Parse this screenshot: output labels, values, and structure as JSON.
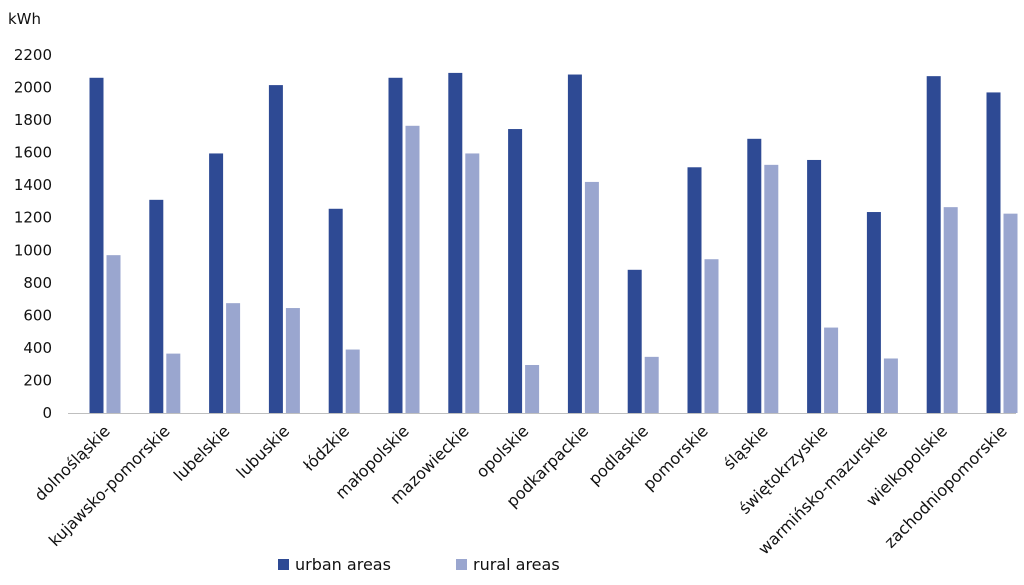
{
  "chart_data": {
    "type": "bar",
    "unit_label": "kWh",
    "categories": [
      "dolnośląskie",
      "kujawsko-pomorskie",
      "lubelskie",
      "lubuskie",
      "łódzkie",
      "małopolskie",
      "mazowieckie",
      "opolskie",
      "podkarpackie",
      "podlaskie",
      "pomorskie",
      "śląskie",
      "świętokrzyskie",
      "warmińsko-mazurskie",
      "wielkopolskie",
      "zachodniopomorskie"
    ],
    "series": [
      {
        "name": "urban areas",
        "color": "#2e4a94",
        "values": [
          2060,
          1310,
          1595,
          2015,
          1255,
          2060,
          2090,
          1745,
          2080,
          880,
          1510,
          1685,
          1555,
          1235,
          2070,
          1970
        ]
      },
      {
        "name": "rural areas",
        "color": "#9aa6cf",
        "values": [
          970,
          365,
          675,
          645,
          390,
          1765,
          1595,
          295,
          1420,
          345,
          945,
          1525,
          525,
          335,
          1265,
          1225
        ]
      }
    ],
    "ylim": [
      0,
      2200
    ],
    "yticks": [
      0,
      200,
      400,
      600,
      800,
      1000,
      1200,
      1400,
      1600,
      1800,
      2000,
      2200
    ],
    "grid": false,
    "legend_position": "bottom"
  }
}
